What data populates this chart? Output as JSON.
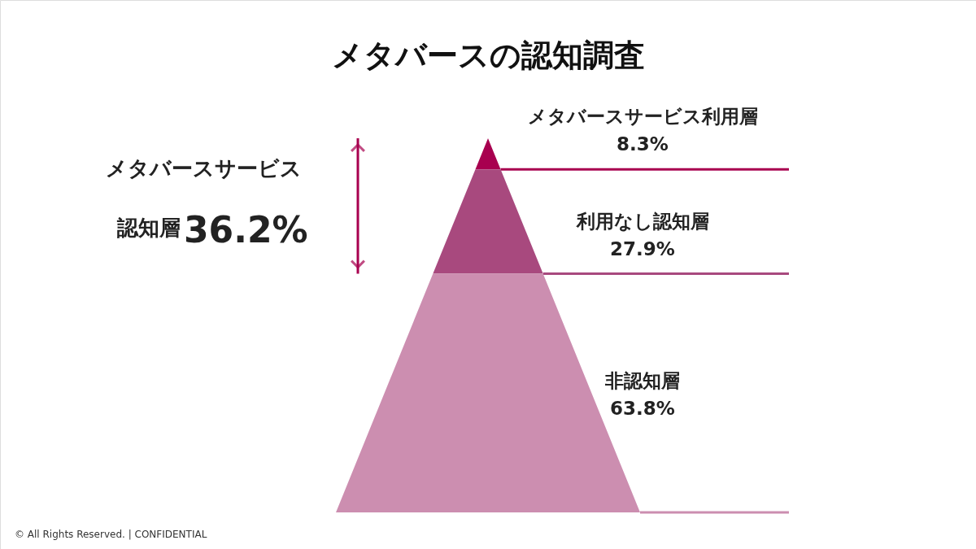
{
  "chart_data": {
    "type": "other",
    "title": "メタバースの認知調査",
    "categories": [
      "メタバースサービス利用層",
      "利用なし認知層",
      "非認知層"
    ],
    "values": [
      8.3,
      27.9,
      63.8
    ],
    "value_labels": [
      "8.3%",
      "27.9%",
      "63.8%"
    ],
    "colors": [
      "#a8004f",
      "#a8497e",
      "#cc8eb0"
    ],
    "annotations": [
      "メタバースサービス",
      "認知層",
      "36.2%",
      "© All Rights Reserved. | CONFIDENTIAL"
    ]
  }
}
